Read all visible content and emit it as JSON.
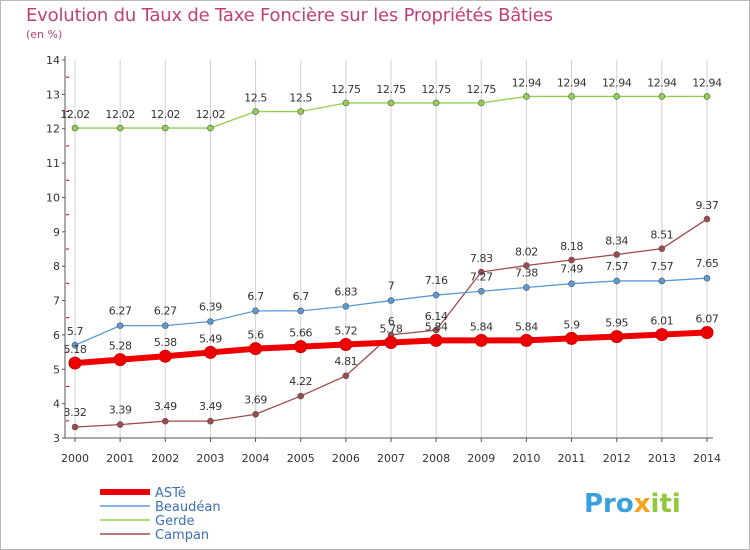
{
  "header": {
    "title": "Evolution du Taux de Taxe Foncière sur les Propriétés Bâties",
    "unit": "(en %)"
  },
  "logo": {
    "text": "Proxiti"
  },
  "colors": {
    "axis": "#555555",
    "grid": "#d0d0d0",
    "tick_red": "#cc0000"
  },
  "chart_data": {
    "type": "line",
    "title": "Evolution du Taux de Taxe Foncière sur les Propriétés Bâties",
    "ylabel": "(en %)",
    "xlabel": "",
    "ylim": [
      3,
      14
    ],
    "yticks": [
      3,
      4,
      5,
      6,
      7,
      8,
      9,
      10,
      11,
      12,
      13,
      14
    ],
    "grid": "vertical",
    "legend_position": "bottom-left",
    "x": [
      "2000",
      "2001",
      "2002",
      "2003",
      "2004",
      "2005",
      "2006",
      "2007",
      "2008",
      "2009",
      "2010",
      "2011",
      "2012",
      "2013",
      "2014"
    ],
    "series": [
      {
        "name": "ASTé",
        "color": "#ee0000",
        "values": [
          5.18,
          5.28,
          5.38,
          5.49,
          5.6,
          5.66,
          5.72,
          5.78,
          5.84,
          5.84,
          5.84,
          5.9,
          5.95,
          6.01,
          6.07
        ],
        "labels": [
          "5.18",
          "5.28",
          "5.38",
          "5.49",
          "5.6",
          "5.66",
          "5.72",
          "5.78",
          "5.84",
          "5.84",
          "5.84",
          "5.9",
          "5.95",
          "6.01",
          "6.07"
        ]
      },
      {
        "name": "Beaudéan",
        "color": "#5b9bd5",
        "values": [
          5.7,
          6.27,
          6.27,
          6.39,
          6.7,
          6.7,
          6.83,
          7,
          7.16,
          7.27,
          7.38,
          7.49,
          7.57,
          7.57,
          7.65
        ],
        "labels": [
          "5.7",
          "6.27",
          "6.27",
          "6.39",
          "6.7",
          "6.7",
          "6.83",
          "7",
          "7.16",
          "7.27",
          "7.38",
          "7.49",
          "7.57",
          "7.57",
          "7.65"
        ]
      },
      {
        "name": "Gerde",
        "color": "#92d050",
        "values": [
          12.02,
          12.02,
          12.02,
          12.02,
          12.5,
          12.5,
          12.75,
          12.75,
          12.75,
          12.75,
          12.94,
          12.94,
          12.94,
          12.94,
          12.94
        ],
        "labels": [
          "12.02",
          "12.02",
          "12.02",
          "12.02",
          "12.5",
          "12.5",
          "12.75",
          "12.75",
          "12.75",
          "12.75",
          "12.94",
          "12.94",
          "12.94",
          "12.94",
          "12.94"
        ]
      },
      {
        "name": "Campan",
        "color": "#9e4b4b",
        "values": [
          3.32,
          3.39,
          3.49,
          3.49,
          3.69,
          4.22,
          4.81,
          6,
          6.14,
          7.83,
          8.02,
          8.18,
          8.34,
          8.51,
          9.37
        ],
        "labels": [
          "3.32",
          "3.39",
          "3.49",
          "3.49",
          "3.69",
          "4.22",
          "4.81",
          "6",
          "6.14",
          "7.83",
          "8.02",
          "8.18",
          "8.34",
          "8.51",
          "9.37"
        ]
      }
    ]
  }
}
